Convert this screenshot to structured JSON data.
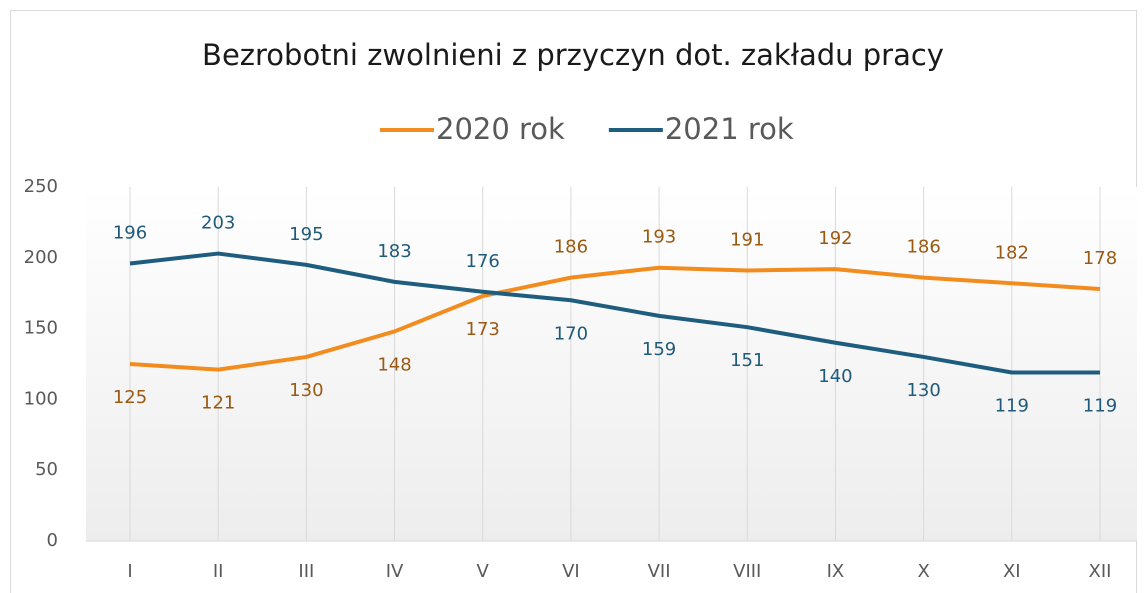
{
  "chart_data": {
    "type": "line",
    "title": "Bezrobotni zwolnieni z przyczyn dot. zakładu pracy",
    "categories": [
      "I",
      "II",
      "III",
      "IV",
      "V",
      "VI",
      "VII",
      "VIII",
      "IX",
      "X",
      "XI",
      "XII"
    ],
    "series": [
      {
        "name": "2020 rok",
        "color": "#f28c1e",
        "label_color": "#9a5a12",
        "values": [
          125,
          121,
          130,
          148,
          173,
          186,
          193,
          191,
          192,
          186,
          182,
          178
        ]
      },
      {
        "name": "2021 rok",
        "color": "#1f5d7e",
        "label_color": "#1f5a7a",
        "values": [
          196,
          203,
          195,
          183,
          176,
          170,
          159,
          151,
          140,
          130,
          119,
          119
        ]
      }
    ],
    "ylim": [
      0,
      250
    ],
    "yticks": [
      0,
      50,
      100,
      150,
      200,
      250
    ],
    "grid": true,
    "legend": "top"
  }
}
